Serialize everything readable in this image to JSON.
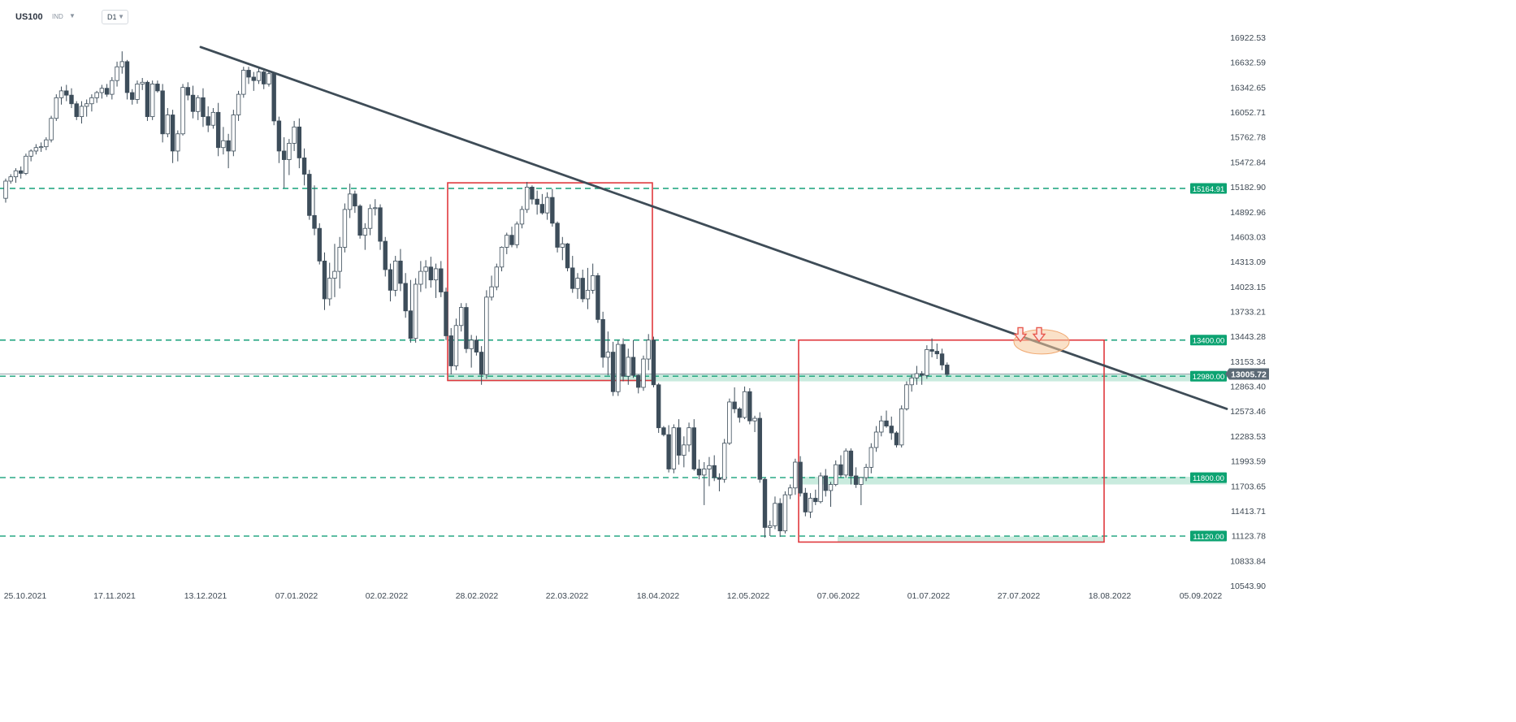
{
  "header": {
    "symbol": "US100",
    "instrument_type": "IND",
    "timeframe": "D1",
    "caret": "▼"
  },
  "colors": {
    "bull": "#ffffff",
    "bear": "#3d4d5a",
    "wick": "#3d4d5a",
    "trendline": "#3e4c57",
    "box": "#e0393e",
    "level_line": "#16a17a",
    "level_badge": "#0da372",
    "zone": "#bfe8d8",
    "price_badge": "#5c6a76",
    "axis_text": "#3d4853",
    "highlight": "#f6c89a",
    "arrow": "#e8594e"
  },
  "chart_data": {
    "type": "candlestick",
    "symbol": "US100",
    "timeframe": "D1",
    "y_ticks": [
      "16922.53",
      "16632.59",
      "16342.65",
      "16052.71",
      "15762.78",
      "15472.84",
      "15182.90",
      "14892.96",
      "14603.03",
      "14313.09",
      "14023.15",
      "13733.21",
      "13443.28",
      "13153.34",
      "12863.40",
      "12573.46",
      "12283.53",
      "11993.59",
      "11703.65",
      "11413.71",
      "11123.78",
      "10833.84",
      "10543.90"
    ],
    "x_ticks": [
      "25.10.2021",
      "17.11.2021",
      "13.12.2021",
      "07.01.2022",
      "02.02.2022",
      "28.02.2022",
      "22.03.2022",
      "18.04.2022",
      "12.05.2022",
      "07.06.2022",
      "01.07.2022",
      "27.07.2022",
      "18.08.2022",
      "05.09.2022"
    ],
    "ylim": [
      10543.9,
      16922.53
    ],
    "current_price": "13005.72",
    "levels": [
      {
        "price": 15164.91,
        "label": "15164.91"
      },
      {
        "price": 13400.0,
        "label": "13400.00"
      },
      {
        "price": 12980.0,
        "label": "12980.00"
      },
      {
        "price": 11800.0,
        "label": "11800.00"
      },
      {
        "price": 11120.0,
        "label": "11120.00"
      }
    ],
    "zones": [
      {
        "from": "02.2022",
        "to": "09.2022",
        "price_low": 12920,
        "price_high": 13010
      },
      {
        "from": "05.2022",
        "to": "09.2022",
        "price_low": 11720,
        "price_high": 11810
      },
      {
        "from": "06.2022",
        "to": "08.2022",
        "price_low": 11050,
        "price_high": 11115
      }
    ],
    "trendline": {
      "from": {
        "date": "11.2021",
        "price": 16810
      },
      "to": {
        "date": "09.2022",
        "price": 12600
      }
    },
    "boxes": [
      {
        "from": "02.2022",
        "to": "04.2022",
        "price_low": 12930,
        "price_high": 15230
      },
      {
        "from": "05.2022",
        "to": "08.2022",
        "price_low": 11050,
        "price_high": 13400
      }
    ],
    "candles": [
      [
        15050,
        15280,
        15000,
        15250
      ],
      [
        15250,
        15330,
        15220,
        15300
      ],
      [
        15300,
        15400,
        15230,
        15370
      ],
      [
        15370,
        15420,
        15280,
        15340
      ],
      [
        15340,
        15570,
        15320,
        15540
      ],
      [
        15540,
        15620,
        15480,
        15600
      ],
      [
        15600,
        15680,
        15560,
        15640
      ],
      [
        15640,
        15700,
        15590,
        15650
      ],
      [
        15650,
        15760,
        15610,
        15730
      ],
      [
        15730,
        16010,
        15700,
        15980
      ],
      [
        15980,
        16260,
        15950,
        16220
      ],
      [
        16220,
        16350,
        16140,
        16300
      ],
      [
        16300,
        16370,
        16180,
        16250
      ],
      [
        16250,
        16330,
        16100,
        16150
      ],
      [
        16150,
        16180,
        15960,
        16000
      ],
      [
        16000,
        16180,
        15920,
        16120
      ],
      [
        16120,
        16200,
        16000,
        16150
      ],
      [
        16150,
        16260,
        16060,
        16220
      ],
      [
        16220,
        16300,
        16160,
        16280
      ],
      [
        16280,
        16370,
        16210,
        16330
      ],
      [
        16330,
        16380,
        16230,
        16260
      ],
      [
        16260,
        16460,
        16200,
        16420
      ],
      [
        16420,
        16640,
        16350,
        16580
      ],
      [
        16580,
        16760,
        16500,
        16640
      ],
      [
        16640,
        16660,
        16200,
        16280
      ],
      [
        16280,
        16320,
        16140,
        16200
      ],
      [
        16200,
        16420,
        16150,
        16380
      ],
      [
        16380,
        16450,
        16310,
        16400
      ],
      [
        16400,
        16420,
        15950,
        16000
      ],
      [
        16000,
        16420,
        15960,
        16380
      ],
      [
        16380,
        16420,
        16280,
        16300
      ],
      [
        16300,
        16380,
        15700,
        15800
      ],
      [
        15800,
        16100,
        15760,
        16020
      ],
      [
        16020,
        16080,
        15460,
        15600
      ],
      [
        15600,
        15840,
        15480,
        15800
      ],
      [
        15800,
        16380,
        15780,
        16340
      ],
      [
        16340,
        16400,
        16190,
        16250
      ],
      [
        16250,
        16360,
        15980,
        16060
      ],
      [
        16060,
        16250,
        15960,
        16220
      ],
      [
        16220,
        16330,
        15880,
        16000
      ],
      [
        16000,
        16120,
        15820,
        15900
      ],
      [
        15900,
        16100,
        15860,
        16050
      ],
      [
        16050,
        16160,
        15540,
        15640
      ],
      [
        15640,
        15880,
        15560,
        15720
      ],
      [
        15720,
        15800,
        15400,
        15600
      ],
      [
        15600,
        16080,
        15540,
        16020
      ],
      [
        16020,
        16300,
        15950,
        16260
      ],
      [
        16260,
        16580,
        16220,
        16540
      ],
      [
        16540,
        16580,
        16380,
        16460
      ],
      [
        16460,
        16520,
        16300,
        16420
      ],
      [
        16420,
        16580,
        16380,
        16520
      ],
      [
        16520,
        16540,
        16320,
        16380
      ],
      [
        16380,
        16540,
        16350,
        16500
      ],
      [
        16500,
        16520,
        15900,
        15950
      ],
      [
        15950,
        16000,
        15460,
        15600
      ],
      [
        15600,
        15760,
        15170,
        15500
      ],
      [
        15500,
        15740,
        15320,
        15690
      ],
      [
        15690,
        15950,
        15600,
        15880
      ],
      [
        15880,
        15980,
        15400,
        15520
      ],
      [
        15520,
        15630,
        15200,
        15330
      ],
      [
        15330,
        15380,
        14800,
        14850
      ],
      [
        14850,
        15200,
        14620,
        14700
      ],
      [
        14700,
        14760,
        14280,
        14320
      ],
      [
        14320,
        14420,
        13750,
        13880
      ],
      [
        13880,
        14300,
        13800,
        14120
      ],
      [
        14120,
        14520,
        13900,
        14200
      ],
      [
        14200,
        14600,
        14000,
        14480
      ],
      [
        14480,
        14990,
        14420,
        14920
      ],
      [
        14920,
        15220,
        14820,
        15100
      ],
      [
        15100,
        15140,
        14880,
        14960
      ],
      [
        14960,
        14980,
        14580,
        14620
      ],
      [
        14620,
        14760,
        14450,
        14700
      ],
      [
        14700,
        14980,
        14620,
        14930
      ],
      [
        14930,
        15040,
        14850,
        14940
      ],
      [
        14940,
        14980,
        14450,
        14550
      ],
      [
        14550,
        14600,
        14140,
        14220
      ],
      [
        14220,
        14290,
        13850,
        13980
      ],
      [
        13980,
        14380,
        13910,
        14320
      ],
      [
        14320,
        14460,
        13970,
        14060
      ],
      [
        14060,
        14180,
        13660,
        13740
      ],
      [
        13740,
        14100,
        13370,
        13420
      ],
      [
        13420,
        14120,
        13370,
        14050
      ],
      [
        14050,
        14320,
        13960,
        14200
      ],
      [
        14200,
        14330,
        14000,
        14250
      ],
      [
        14250,
        14370,
        14010,
        14100
      ],
      [
        14100,
        14290,
        13890,
        14230
      ],
      [
        14230,
        14320,
        13900,
        13960
      ],
      [
        13960,
        14010,
        13400,
        13450
      ],
      [
        13450,
        13540,
        13000,
        13100
      ],
      [
        13100,
        13650,
        13050,
        13570
      ],
      [
        13570,
        13830,
        13500,
        13780
      ],
      [
        13780,
        13830,
        13250,
        13300
      ],
      [
        13300,
        13460,
        13080,
        13400
      ],
      [
        13400,
        13450,
        13220,
        13260
      ],
      [
        13260,
        13330,
        12880,
        13000
      ],
      [
        13000,
        13980,
        12950,
        13900
      ],
      [
        13900,
        14150,
        13860,
        14020
      ],
      [
        14020,
        14290,
        13980,
        14250
      ],
      [
        14250,
        14490,
        14200,
        14480
      ],
      [
        14480,
        14650,
        14400,
        14620
      ],
      [
        14620,
        14720,
        14480,
        14510
      ],
      [
        14510,
        14780,
        14470,
        14750
      ],
      [
        14750,
        14960,
        14700,
        14920
      ],
      [
        14920,
        15240,
        14880,
        15180
      ],
      [
        15180,
        15200,
        14980,
        15040
      ],
      [
        15040,
        15140,
        14860,
        14980
      ],
      [
        14980,
        15100,
        14860,
        14880
      ],
      [
        14880,
        15120,
        14800,
        15060
      ],
      [
        15060,
        15160,
        14720,
        14760
      ],
      [
        14760,
        14780,
        14420,
        14480
      ],
      [
        14480,
        14600,
        14330,
        14520
      ],
      [
        14520,
        14530,
        14200,
        14240
      ],
      [
        14240,
        14380,
        13950,
        14000
      ],
      [
        14000,
        14180,
        13880,
        14120
      ],
      [
        14120,
        14220,
        13840,
        13880
      ],
      [
        13880,
        14240,
        13760,
        13980
      ],
      [
        13980,
        14290,
        13940,
        14150
      ],
      [
        14150,
        14180,
        13600,
        13640
      ],
      [
        13640,
        13730,
        13080,
        13200
      ],
      [
        13200,
        13500,
        12990,
        13260
      ],
      [
        13260,
        13380,
        12750,
        12800
      ],
      [
        12800,
        13400,
        12750,
        13350
      ],
      [
        13350,
        13420,
        12920,
        12980
      ],
      [
        12980,
        13300,
        12880,
        13200
      ],
      [
        13200,
        13400,
        12960,
        12990
      ],
      [
        12990,
        13000,
        12780,
        12850
      ],
      [
        12850,
        13220,
        12810,
        13180
      ],
      [
        13180,
        13470,
        13050,
        13400
      ],
      [
        13400,
        13440,
        12850,
        12880
      ],
      [
        12880,
        12900,
        12320,
        12380
      ],
      [
        12380,
        12400,
        12280,
        12300
      ],
      [
        12300,
        12410,
        11860,
        11900
      ],
      [
        11900,
        12420,
        11850,
        12380
      ],
      [
        12380,
        12480,
        11950,
        12060
      ],
      [
        12060,
        12280,
        11920,
        12180
      ],
      [
        12180,
        12440,
        12100,
        12380
      ],
      [
        12380,
        12480,
        11880,
        11900
      ],
      [
        11900,
        12010,
        11780,
        11830
      ],
      [
        11830,
        11980,
        11480,
        11900
      ],
      [
        11900,
        12040,
        11700,
        11940
      ],
      [
        11940,
        12060,
        11760,
        11800
      ],
      [
        11800,
        11850,
        11640,
        11780
      ],
      [
        11780,
        12250,
        11740,
        12200
      ],
      [
        12200,
        12720,
        12180,
        12680
      ],
      [
        12680,
        12850,
        12550,
        12600
      ],
      [
        12600,
        12620,
        12440,
        12500
      ],
      [
        12500,
        12860,
        12480,
        12800
      ],
      [
        12800,
        12840,
        12420,
        12460
      ],
      [
        12460,
        12520,
        12330,
        12490
      ],
      [
        12490,
        12560,
        11740,
        11780
      ],
      [
        11780,
        11800,
        11100,
        11220
      ],
      [
        11220,
        11300,
        11120,
        11240
      ],
      [
        11240,
        11580,
        11200,
        11500
      ],
      [
        11500,
        11560,
        11110,
        11180
      ],
      [
        11180,
        11640,
        11150,
        11600
      ],
      [
        11600,
        11720,
        11550,
        11680
      ],
      [
        11680,
        12020,
        11600,
        11980
      ],
      [
        11980,
        12050,
        11580,
        11620
      ],
      [
        11620,
        11680,
        11350,
        11400
      ],
      [
        11400,
        11620,
        11330,
        11560
      ],
      [
        11560,
        11660,
        11480,
        11520
      ],
      [
        11520,
        11860,
        11500,
        11820
      ],
      [
        11820,
        11900,
        11580,
        11650
      ],
      [
        11650,
        11750,
        11460,
        11720
      ],
      [
        11720,
        12000,
        11700,
        11950
      ],
      [
        11950,
        12060,
        11800,
        11830
      ],
      [
        11830,
        12140,
        11800,
        12110
      ],
      [
        12110,
        12140,
        11720,
        11820
      ],
      [
        11820,
        11920,
        11680,
        11720
      ],
      [
        11720,
        11740,
        11480,
        11800
      ],
      [
        11800,
        11960,
        11760,
        11920
      ],
      [
        11920,
        12200,
        11850,
        12150
      ],
      [
        12150,
        12400,
        12100,
        12330
      ],
      [
        12330,
        12520,
        12280,
        12460
      ],
      [
        12460,
        12580,
        12380,
        12400
      ],
      [
        12400,
        12510,
        12240,
        12320
      ],
      [
        12320,
        12340,
        12150,
        12180
      ],
      [
        12180,
        12640,
        12150,
        12600
      ],
      [
        12600,
        12920,
        12580,
        12880
      ],
      [
        12880,
        13000,
        12800,
        12960
      ],
      [
        12960,
        13100,
        12880,
        13010
      ],
      [
        13010,
        13040,
        12880,
        12990
      ],
      [
        12990,
        13340,
        12950,
        13290
      ],
      [
        13290,
        13420,
        13200,
        13270
      ],
      [
        13270,
        13360,
        13180,
        13240
      ],
      [
        13240,
        13300,
        13050,
        13110
      ],
      [
        13110,
        13140,
        12980,
        13000
      ]
    ]
  }
}
